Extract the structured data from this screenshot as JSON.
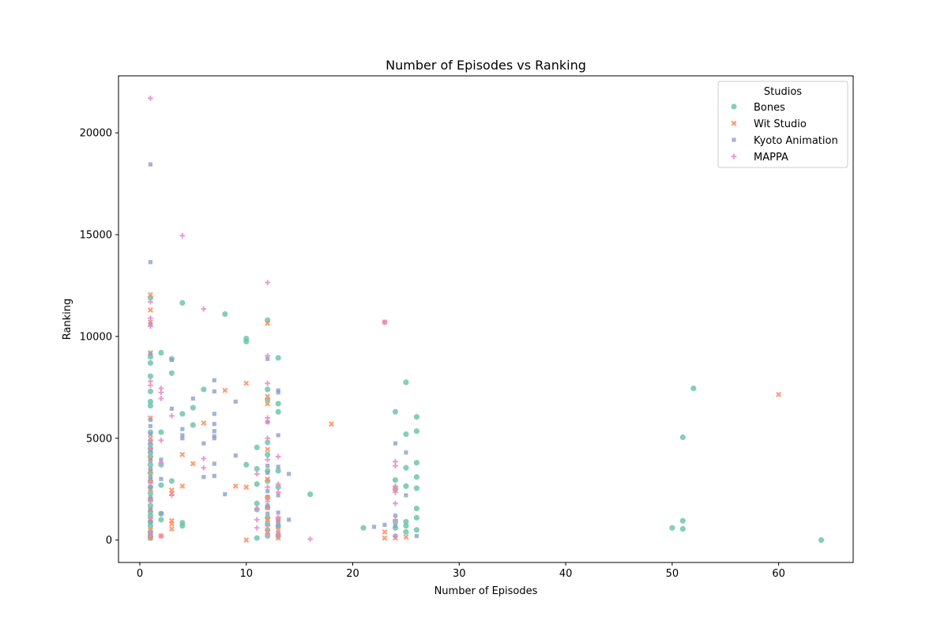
{
  "chart_data": {
    "type": "scatter",
    "title": "Number of Episodes vs Ranking",
    "xlabel": "Number of Episodes",
    "ylabel": "Ranking",
    "xlim": [
      -2,
      67
    ],
    "ylim": [
      -1100,
      22800
    ],
    "xticks": [
      0,
      10,
      20,
      30,
      40,
      50,
      60
    ],
    "yticks": [
      0,
      5000,
      10000,
      15000,
      20000
    ],
    "grid": false,
    "legend": {
      "title": "Studios",
      "position": "top-right"
    },
    "series": [
      {
        "name": "Bones",
        "color": "#66c2a5",
        "marker": "circle",
        "points": [
          [
            1,
            11900
          ],
          [
            1,
            9000
          ],
          [
            1,
            8700
          ],
          [
            1,
            8050
          ],
          [
            1,
            7300
          ],
          [
            1,
            6800
          ],
          [
            1,
            6600
          ],
          [
            1,
            5300
          ],
          [
            1,
            4700
          ],
          [
            1,
            4500
          ],
          [
            1,
            4300
          ],
          [
            1,
            4100
          ],
          [
            1,
            3700
          ],
          [
            1,
            3300
          ],
          [
            1,
            2900
          ],
          [
            1,
            2600
          ],
          [
            1,
            2300
          ],
          [
            1,
            2000
          ],
          [
            1,
            1700
          ],
          [
            1,
            1400
          ],
          [
            1,
            1200
          ],
          [
            1,
            900
          ],
          [
            1,
            700
          ],
          [
            1,
            400
          ],
          [
            1,
            200
          ],
          [
            1,
            100
          ],
          [
            2,
            9200
          ],
          [
            2,
            5300
          ],
          [
            2,
            3700
          ],
          [
            2,
            2700
          ],
          [
            2,
            1300
          ],
          [
            2,
            1000
          ],
          [
            3,
            8900
          ],
          [
            3,
            8200
          ],
          [
            3,
            2900
          ],
          [
            4,
            11650
          ],
          [
            4,
            6200
          ],
          [
            4,
            850
          ],
          [
            4,
            700
          ],
          [
            5,
            6500
          ],
          [
            5,
            5650
          ],
          [
            6,
            7400
          ],
          [
            8,
            11100
          ],
          [
            10,
            9900
          ],
          [
            10,
            9750
          ],
          [
            10,
            3700
          ],
          [
            11,
            4550
          ],
          [
            11,
            3500
          ],
          [
            11,
            2750
          ],
          [
            11,
            1800
          ],
          [
            11,
            1500
          ],
          [
            11,
            100
          ],
          [
            12,
            10800
          ],
          [
            12,
            7400
          ],
          [
            12,
            6900
          ],
          [
            12,
            4800
          ],
          [
            12,
            4200
          ],
          [
            12,
            3400
          ],
          [
            12,
            2900
          ],
          [
            12,
            2100
          ],
          [
            12,
            1600
          ],
          [
            12,
            1100
          ],
          [
            12,
            800
          ],
          [
            12,
            500
          ],
          [
            12,
            200
          ],
          [
            13,
            8950
          ],
          [
            13,
            6700
          ],
          [
            13,
            6300
          ],
          [
            13,
            3400
          ],
          [
            13,
            2600
          ],
          [
            13,
            700
          ],
          [
            13,
            200
          ],
          [
            16,
            2250
          ],
          [
            21,
            600
          ],
          [
            24,
            6300
          ],
          [
            24,
            2950
          ],
          [
            24,
            2500
          ],
          [
            24,
            900
          ],
          [
            24,
            600
          ],
          [
            25,
            7750
          ],
          [
            25,
            5200
          ],
          [
            25,
            3550
          ],
          [
            25,
            2650
          ],
          [
            25,
            900
          ],
          [
            25,
            700
          ],
          [
            25,
            400
          ],
          [
            26,
            6050
          ],
          [
            26,
            5350
          ],
          [
            26,
            3800
          ],
          [
            26,
            3100
          ],
          [
            26,
            2550
          ],
          [
            26,
            1550
          ],
          [
            26,
            1100
          ],
          [
            26,
            500
          ],
          [
            50,
            600
          ],
          [
            51,
            5050
          ],
          [
            51,
            950
          ],
          [
            51,
            550
          ],
          [
            52,
            7450
          ],
          [
            64,
            0
          ]
        ]
      },
      {
        "name": "Wit Studio",
        "color": "#fc8d62",
        "marker": "x",
        "points": [
          [
            1,
            12050
          ],
          [
            1,
            11300
          ],
          [
            1,
            10700
          ],
          [
            1,
            9200
          ],
          [
            1,
            6000
          ],
          [
            1,
            5000
          ],
          [
            1,
            4000
          ],
          [
            1,
            3400
          ],
          [
            1,
            3000
          ],
          [
            1,
            2500
          ],
          [
            1,
            2000
          ],
          [
            1,
            1500
          ],
          [
            1,
            1000
          ],
          [
            1,
            500
          ],
          [
            1,
            100
          ],
          [
            2,
            200
          ],
          [
            3,
            950
          ],
          [
            3,
            800
          ],
          [
            3,
            550
          ],
          [
            3,
            2450
          ],
          [
            3,
            2300
          ],
          [
            4,
            4200
          ],
          [
            4,
            2650
          ],
          [
            5,
            3750
          ],
          [
            6,
            5750
          ],
          [
            8,
            7350
          ],
          [
            9,
            2650
          ],
          [
            10,
            7700
          ],
          [
            10,
            2600
          ],
          [
            10,
            0
          ],
          [
            12,
            10650
          ],
          [
            12,
            7050
          ],
          [
            12,
            6700
          ],
          [
            12,
            4450
          ],
          [
            12,
            3000
          ],
          [
            12,
            2100
          ],
          [
            12,
            1600
          ],
          [
            12,
            1000
          ],
          [
            12,
            400
          ],
          [
            13,
            1050
          ],
          [
            13,
            950
          ],
          [
            13,
            500
          ],
          [
            13,
            100
          ],
          [
            18,
            5700
          ],
          [
            23,
            10700
          ],
          [
            23,
            400
          ],
          [
            23,
            100
          ],
          [
            24,
            2550
          ],
          [
            24,
            100
          ],
          [
            25,
            150
          ],
          [
            60,
            7150
          ]
        ]
      },
      {
        "name": "Kyoto Animation",
        "color": "#8da0cb",
        "marker": "square",
        "points": [
          [
            1,
            18450
          ],
          [
            1,
            13650
          ],
          [
            1,
            10600
          ],
          [
            1,
            9150
          ],
          [
            1,
            5900
          ],
          [
            1,
            5600
          ],
          [
            1,
            5200
          ],
          [
            1,
            4800
          ],
          [
            1,
            4400
          ],
          [
            1,
            3900
          ],
          [
            1,
            3500
          ],
          [
            1,
            3100
          ],
          [
            1,
            2600
          ],
          [
            1,
            2100
          ],
          [
            1,
            1500
          ],
          [
            1,
            900
          ],
          [
            1,
            300
          ],
          [
            2,
            3950
          ],
          [
            2,
            3000
          ],
          [
            2,
            1300
          ],
          [
            3,
            8850
          ],
          [
            3,
            6450
          ],
          [
            4,
            5450
          ],
          [
            4,
            5150
          ],
          [
            4,
            5000
          ],
          [
            5,
            6950
          ],
          [
            6,
            4750
          ],
          [
            6,
            3100
          ],
          [
            7,
            7850
          ],
          [
            7,
            7300
          ],
          [
            7,
            6200
          ],
          [
            7,
            5700
          ],
          [
            7,
            5350
          ],
          [
            7,
            5100
          ],
          [
            7,
            5000
          ],
          [
            7,
            3750
          ],
          [
            7,
            3150
          ],
          [
            8,
            2250
          ],
          [
            9,
            6800
          ],
          [
            9,
            4150
          ],
          [
            12,
            8900
          ],
          [
            12,
            5800
          ],
          [
            12,
            3650
          ],
          [
            12,
            3300
          ],
          [
            12,
            2400
          ],
          [
            12,
            1700
          ],
          [
            12,
            1300
          ],
          [
            13,
            7350
          ],
          [
            13,
            7250
          ],
          [
            13,
            5150
          ],
          [
            13,
            3600
          ],
          [
            13,
            2200
          ],
          [
            13,
            1350
          ],
          [
            13,
            900
          ],
          [
            13,
            700
          ],
          [
            13,
            300
          ],
          [
            14,
            3250
          ],
          [
            14,
            1000
          ],
          [
            22,
            650
          ],
          [
            23,
            750
          ],
          [
            24,
            4750
          ],
          [
            24,
            1200
          ],
          [
            24,
            700
          ],
          [
            24,
            200
          ],
          [
            25,
            4300
          ],
          [
            25,
            2200
          ],
          [
            26,
            200
          ]
        ]
      },
      {
        "name": "MAPPA",
        "color": "#e78ac3",
        "marker": "plus",
        "points": [
          [
            1,
            21700
          ],
          [
            1,
            10900
          ],
          [
            1,
            10500
          ],
          [
            1,
            11700
          ],
          [
            1,
            7800
          ],
          [
            1,
            7600
          ],
          [
            1,
            4900
          ],
          [
            1,
            4500
          ],
          [
            1,
            2800
          ],
          [
            1,
            1900
          ],
          [
            1,
            1100
          ],
          [
            1,
            300
          ],
          [
            2,
            7450
          ],
          [
            2,
            7250
          ],
          [
            2,
            6950
          ],
          [
            2,
            4900
          ],
          [
            2,
            3800
          ],
          [
            2,
            200
          ],
          [
            3,
            6100
          ],
          [
            3,
            2200
          ],
          [
            4,
            14950
          ],
          [
            6,
            11350
          ],
          [
            6,
            4000
          ],
          [
            6,
            3550
          ],
          [
            11,
            3250
          ],
          [
            11,
            1550
          ],
          [
            11,
            1000
          ],
          [
            11,
            600
          ],
          [
            12,
            12650
          ],
          [
            12,
            9050
          ],
          [
            12,
            7700
          ],
          [
            12,
            6000
          ],
          [
            12,
            5800
          ],
          [
            12,
            5000
          ],
          [
            12,
            3950
          ],
          [
            12,
            2600
          ],
          [
            12,
            1900
          ],
          [
            12,
            700
          ],
          [
            12,
            300
          ],
          [
            13,
            4100
          ],
          [
            13,
            2750
          ],
          [
            13,
            2350
          ],
          [
            13,
            1100
          ],
          [
            13,
            300
          ],
          [
            16,
            50
          ],
          [
            23,
            10700
          ],
          [
            24,
            3850
          ],
          [
            24,
            3650
          ],
          [
            24,
            2650
          ],
          [
            24,
            2350
          ],
          [
            24,
            1800
          ],
          [
            24,
            1000
          ],
          [
            24,
            200
          ]
        ]
      }
    ]
  }
}
